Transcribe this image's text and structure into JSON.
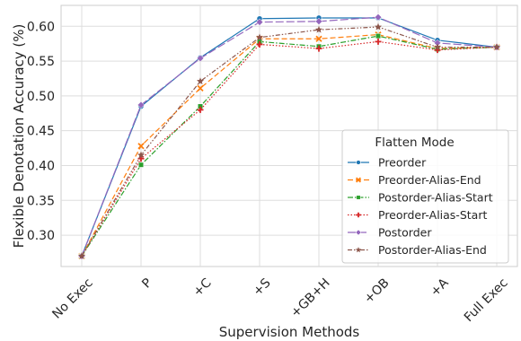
{
  "chart_data": {
    "type": "line",
    "title": "",
    "xlabel": "Supervision Methods",
    "ylabel": "Flexible Denotation Accuracy (%)",
    "categories": [
      "No Exec",
      "P",
      "+C",
      "+S",
      "+GB+H",
      "+OB",
      "+A",
      "Full Exec"
    ],
    "ylim": [
      0.255,
      0.63
    ],
    "yticks": [
      0.3,
      0.35,
      0.4,
      0.45,
      0.5,
      0.55,
      0.6
    ],
    "ytick_labels": [
      "0.30",
      "0.35",
      "0.40",
      "0.45",
      "0.50",
      "0.55",
      "0.60"
    ],
    "grid": true,
    "legend": {
      "title": "Flatten Mode",
      "placement": "lower-right"
    },
    "series": [
      {
        "name": "Preorder",
        "color": "#1f77b4",
        "marker": "circle",
        "dash": "solid",
        "values": [
          0.27,
          0.485,
          0.555,
          0.611,
          0.612,
          0.612,
          0.58,
          0.57
        ]
      },
      {
        "name": "Preorder-Alias-End",
        "color": "#ff7f0e",
        "marker": "x",
        "dash": "dashed",
        "values": [
          0.27,
          0.428,
          0.511,
          0.582,
          0.582,
          0.588,
          0.568,
          0.57
        ]
      },
      {
        "name": "Postorder-Alias-Start",
        "color": "#2ca02c",
        "marker": "square",
        "dash": "dashdot",
        "values": [
          0.27,
          0.401,
          0.485,
          0.578,
          0.571,
          0.586,
          0.567,
          0.57
        ]
      },
      {
        "name": "Preorder-Alias-Start",
        "color": "#d62728",
        "marker": "plus",
        "dash": "dotted",
        "values": [
          0.27,
          0.41,
          0.48,
          0.574,
          0.568,
          0.578,
          0.566,
          0.57
        ]
      },
      {
        "name": "Postorder",
        "color": "#9467bd",
        "marker": "diamond",
        "dash": "longdash",
        "values": [
          0.27,
          0.487,
          0.554,
          0.606,
          0.607,
          0.613,
          0.576,
          0.57
        ]
      },
      {
        "name": "Postorder-Alias-End",
        "color": "#8c564b",
        "marker": "star",
        "dash": "dashdotdot",
        "values": [
          0.27,
          0.415,
          0.521,
          0.584,
          0.595,
          0.599,
          0.57,
          0.57
        ]
      }
    ]
  }
}
